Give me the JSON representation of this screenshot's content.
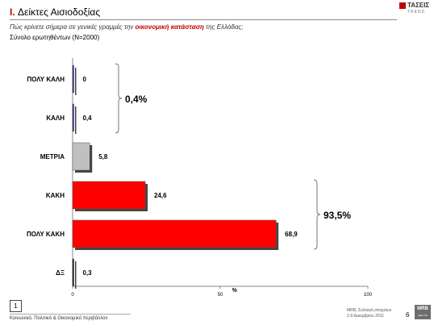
{
  "header": {
    "title_number": "I.",
    "title_text": "Δείκτες Αισιοδοξίας",
    "question_prefix": "Πώς κρίνετε σήμερα σε γενικές γραμμές την",
    "question_highlight": "οικονομική κατάσταση",
    "question_suffix": "της Ελλάδας;",
    "base": "Σύνολο ερωτηθέντων (N=2000)"
  },
  "logo": {
    "name": "ΤΑΣΕΙΣ",
    "sub": "TREND"
  },
  "colors": {
    "accent": "#c00000",
    "bar_blue": "#1a1aa0",
    "bar_grey": "#c0c0c0",
    "bar_red": "#ff0000",
    "bar_black": "#000000"
  },
  "chart_data": {
    "type": "bar",
    "orientation": "horizontal",
    "categories": [
      "ΠΟΛΥ ΚΑΛΗ",
      "ΚΑΛΗ",
      "ΜΕΤΡΙΑ",
      "ΚΑΚΗ",
      "ΠΟΛΥ ΚΑΚΗ",
      "ΔΞ"
    ],
    "values": [
      0,
      0.4,
      5.8,
      24.6,
      68.9,
      0.3
    ],
    "value_labels": [
      "0",
      "0,4",
      "5,8",
      "24,6",
      "68,9",
      "0,3"
    ],
    "bar_colors": [
      "#1a1aa0",
      "#1a1aa0",
      "#c0c0c0",
      "#ff0000",
      "#ff0000",
      "#000000"
    ],
    "xlim": [
      0,
      100
    ],
    "xticks": [
      "0",
      "50",
      "100"
    ],
    "xlabel": "%",
    "groups": [
      {
        "label": "0,4%",
        "from": 0,
        "to": 1
      },
      {
        "label": "93,5%",
        "from": 3,
        "to": 4
      }
    ]
  },
  "footer": {
    "page_box": "1",
    "left": "Κοινωνικό, Πολιτικό & Οικονομικό περιβάλλον",
    "right_line1": "MRB, Συλλογή στοιχείων",
    "right_line2": "2-9 Δεκεμβρίου 2011",
    "page_number": "6",
    "mrb_logo": "MRB",
    "mrb_sub": "HELLAS"
  }
}
